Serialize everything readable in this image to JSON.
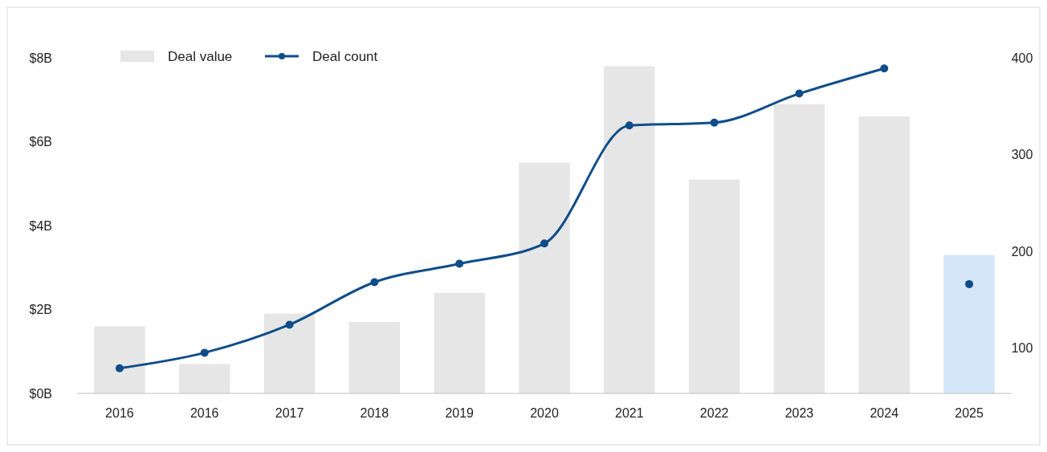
{
  "chart_data": {
    "type": "bar",
    "categories": [
      "2016",
      "2016",
      "2017",
      "2018",
      "2019",
      "2020",
      "2021",
      "2022",
      "2023",
      "2024",
      "2025"
    ],
    "series": [
      {
        "name": "Deal value",
        "color": "#e6e6e6",
        "colors": [
          "#e6e6e6",
          "#e6e6e6",
          "#e6e6e6",
          "#e6e6e6",
          "#e6e6e6",
          "#e6e6e6",
          "#e6e6e6",
          "#e6e6e6",
          "#e6e6e6",
          "#e6e6e6",
          "#d5e6f8"
        ],
        "values": [
          1.6,
          0.7,
          1.9,
          1.7,
          2.4,
          5.5,
          7.8,
          5.1,
          6.9,
          6.6,
          3.3
        ]
      },
      {
        "name": "Deal count",
        "type": "line",
        "axis": "y2",
        "color": "#0f4d8a",
        "marker": "circle",
        "values": [
          79,
          95,
          124,
          168,
          187,
          208,
          330,
          333,
          363,
          389,
          null
        ]
      },
      {
        "type": "scatter",
        "axis": "y2",
        "color": "#0f4d8a",
        "marker": "circle",
        "values": [
          null,
          null,
          null,
          null,
          null,
          null,
          null,
          null,
          null,
          null,
          166
        ]
      }
    ],
    "ylim": [
      0,
      8
    ],
    "yticks": [
      {
        "value": 0,
        "label": "$0B"
      },
      {
        "value": 2,
        "label": "$2B"
      },
      {
        "value": 4,
        "label": "$4B"
      },
      {
        "value": 6,
        "label": "$6B"
      },
      {
        "value": 8,
        "label": "$8B"
      }
    ],
    "y2lim": [
      53,
      400
    ],
    "y2ticks": [
      100,
      200,
      300,
      400
    ],
    "legend": "top left",
    "grid": false
  }
}
